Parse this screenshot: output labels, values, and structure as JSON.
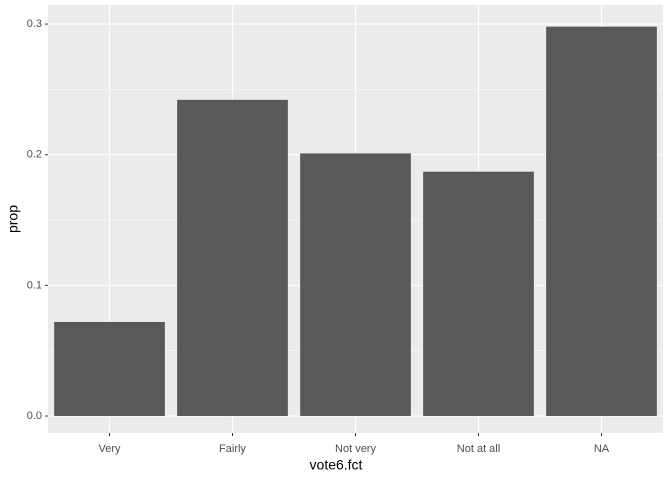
{
  "chart_data": {
    "type": "bar",
    "x_label": "vote6.fct",
    "y_label": "prop",
    "categories": [
      "Very",
      "Fairly",
      "Not very",
      "Not at all",
      "NA"
    ],
    "values": [
      0.072,
      0.242,
      0.201,
      0.187,
      0.298
    ],
    "color": "#595959",
    "ylim": [
      -0.013,
      0.3146
    ],
    "yticks": [
      {
        "value": 0,
        "label": "0.0"
      },
      0.1,
      0.2,
      0.3
    ],
    "grid": true
  }
}
